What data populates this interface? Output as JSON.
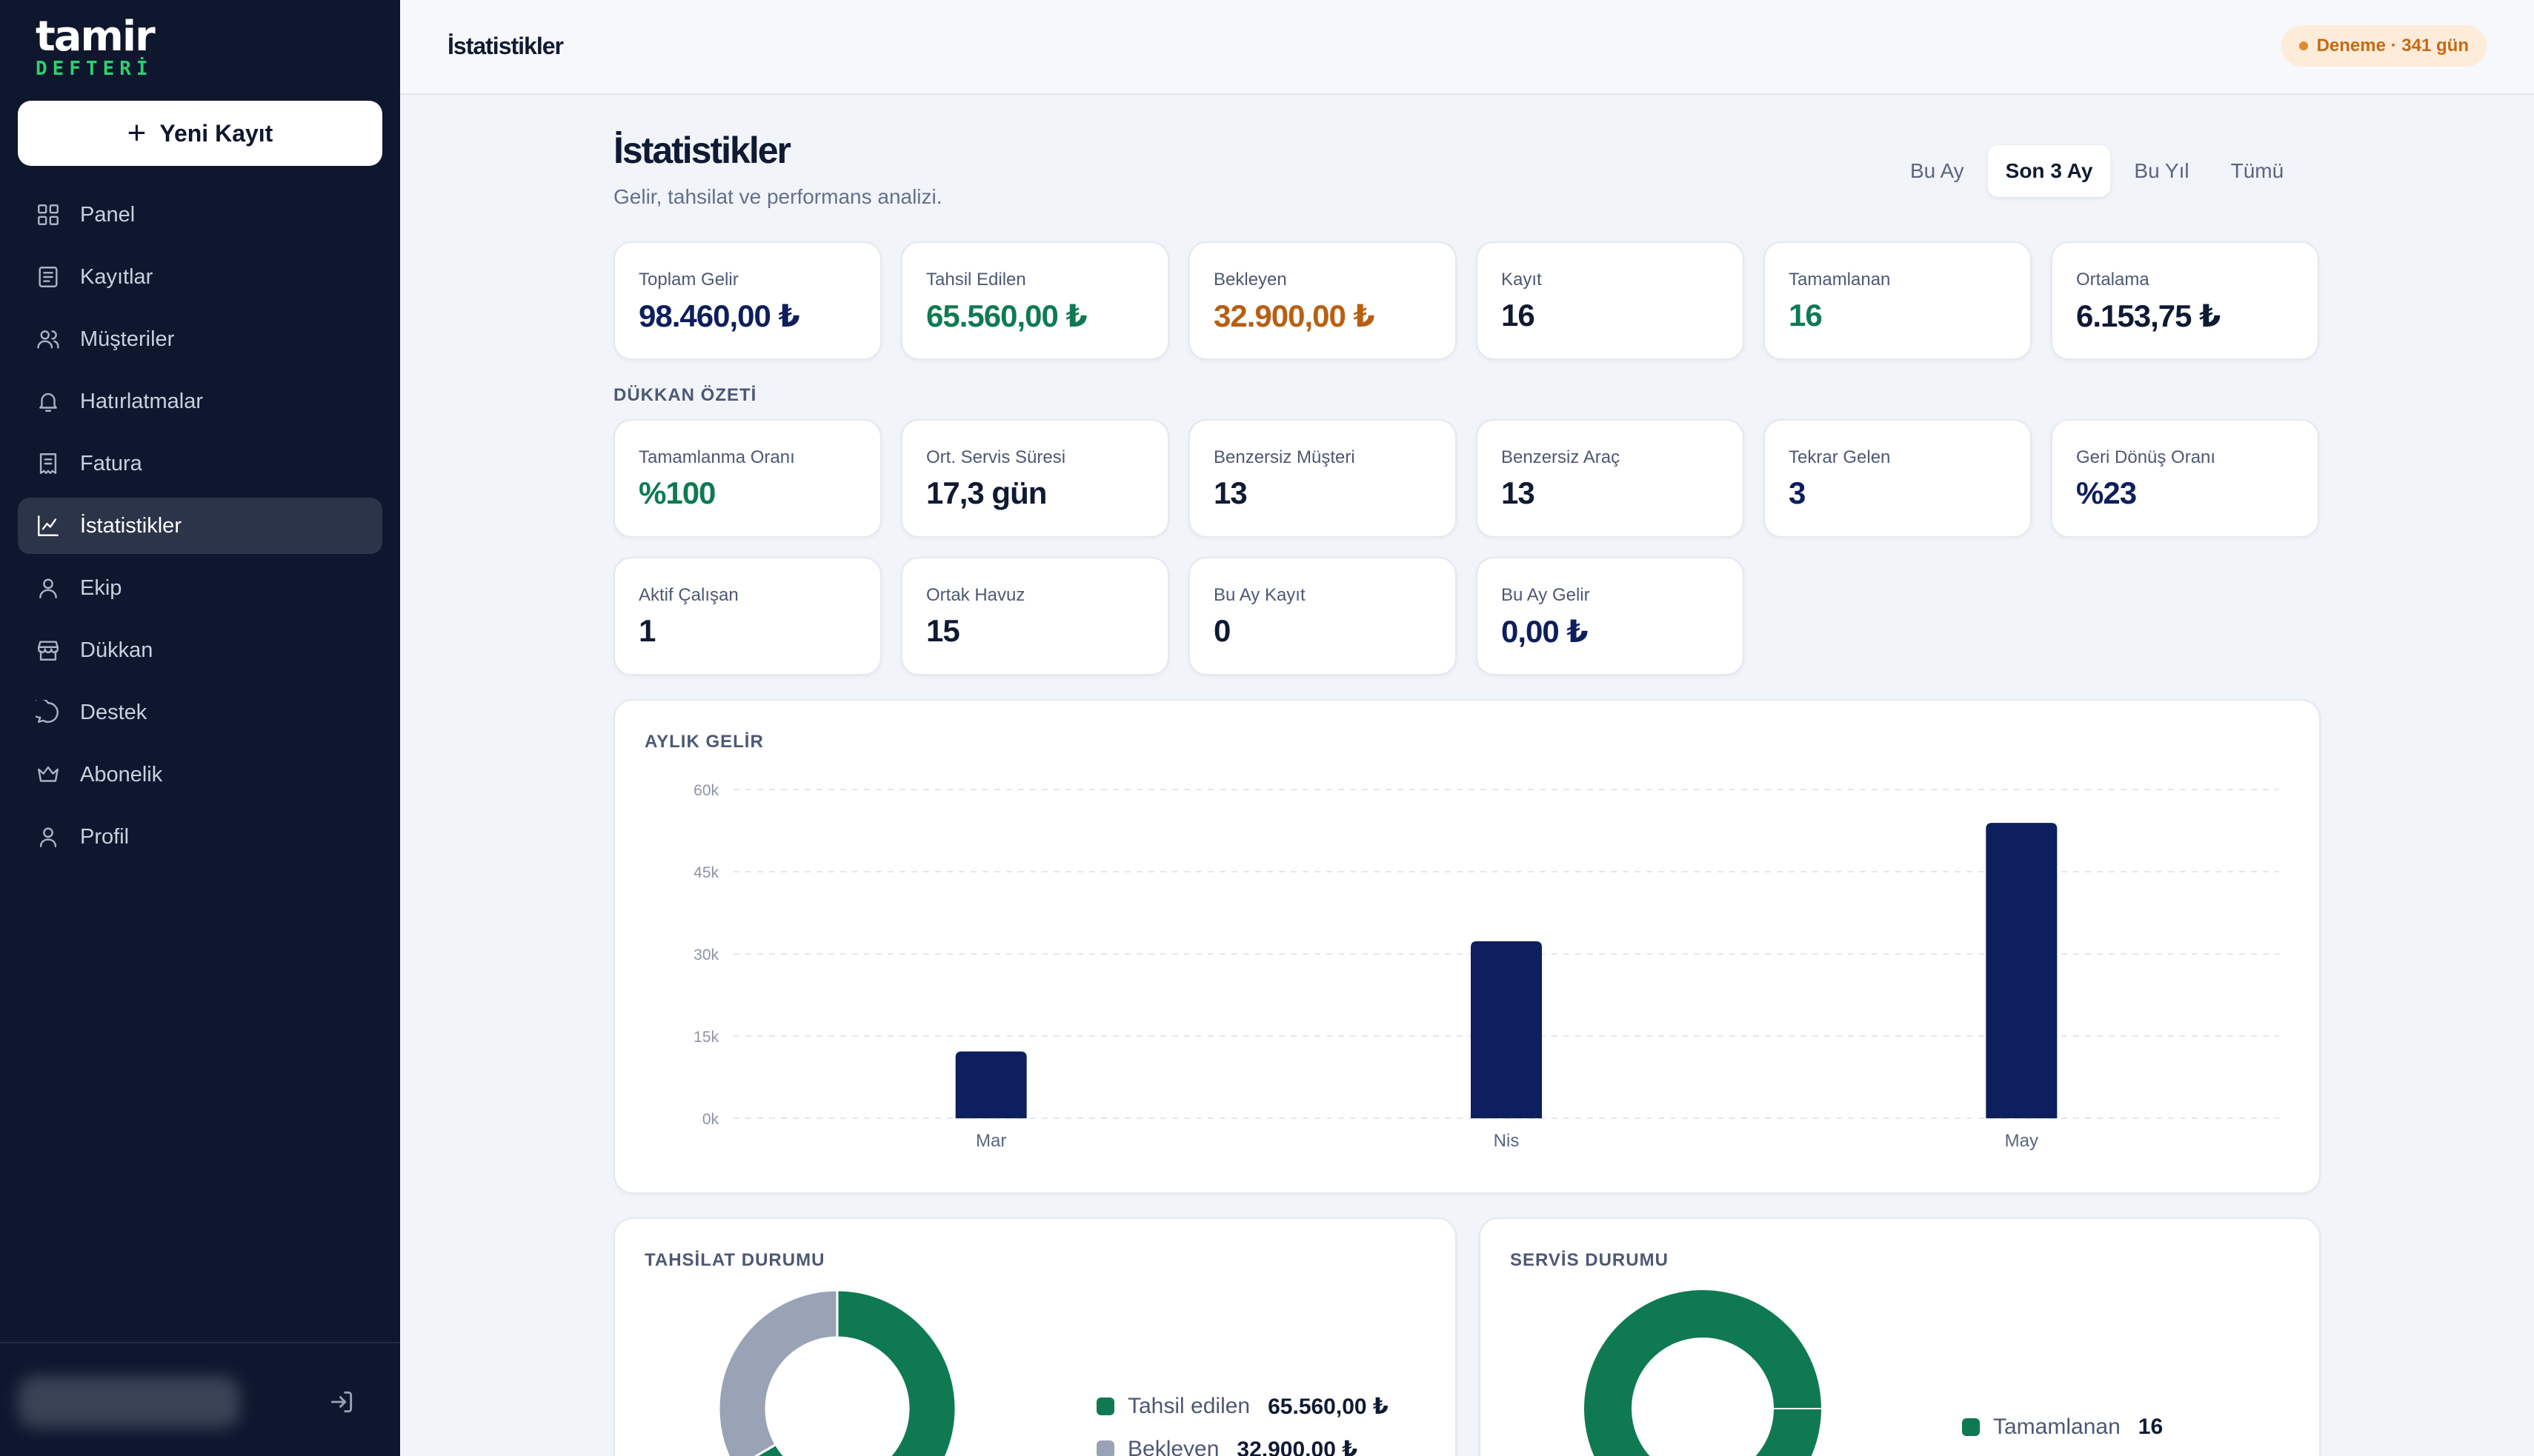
{
  "app": {
    "logo_top": "tamir",
    "logo_bottom": "DEFTERİ",
    "new_record_label": "Yeni Kayıt",
    "page_title": "İstatistikler",
    "trial_badge": "Deneme · 341 gün"
  },
  "sidebar": {
    "items": [
      {
        "label": "Panel",
        "icon": "grid-icon"
      },
      {
        "label": "Kayıtlar",
        "icon": "list-icon"
      },
      {
        "label": "Müşteriler",
        "icon": "users-icon"
      },
      {
        "label": "Hatırlatmalar",
        "icon": "bell-icon"
      },
      {
        "label": "Fatura",
        "icon": "invoice-icon"
      },
      {
        "label": "İstatistikler",
        "icon": "chart-icon",
        "active": true
      },
      {
        "label": "Ekip",
        "icon": "person-icon"
      },
      {
        "label": "Dükkan",
        "icon": "shop-icon"
      },
      {
        "label": "Destek",
        "icon": "chat-icon"
      },
      {
        "label": "Abonelik",
        "icon": "crown-icon"
      },
      {
        "label": "Profil",
        "icon": "profile-icon"
      }
    ]
  },
  "header": {
    "title": "İstatistikler",
    "subtitle": "Gelir, tahsilat ve performans analizi.",
    "range_tabs": [
      "Bu Ay",
      "Son 3 Ay",
      "Bu Yıl",
      "Tümü"
    ],
    "active_range": "Son 3 Ay"
  },
  "kpis": [
    {
      "label": "Toplam Gelir",
      "value": "98.460,00 ₺",
      "color": "#0d1f5c"
    },
    {
      "label": "Tahsil Edilen",
      "value": "65.560,00 ₺",
      "color": "#0f7a52"
    },
    {
      "label": "Bekleyen",
      "value": "32.900,00 ₺",
      "color": "#b85f12"
    },
    {
      "label": "Kayıt",
      "value": "16",
      "color": "#0f1a33"
    },
    {
      "label": "Tamamlanan",
      "value": "16",
      "color": "#0f7a52"
    },
    {
      "label": "Ortalama",
      "value": "6.153,75 ₺",
      "color": "#0f1a33"
    }
  ],
  "shop_summary": {
    "title": "DÜKKAN ÖZETİ",
    "cards": [
      {
        "label": "Tamamlanma Oranı",
        "value": "%100",
        "color": "#0f7a52"
      },
      {
        "label": "Ort. Servis Süresi",
        "value": "17,3 gün",
        "color": "#0f1a33"
      },
      {
        "label": "Benzersiz Müşteri",
        "value": "13",
        "color": "#0f1a33"
      },
      {
        "label": "Benzersiz Araç",
        "value": "13",
        "color": "#0f1a33"
      },
      {
        "label": "Tekrar Gelen",
        "value": "3",
        "color": "#0d1f5c"
      },
      {
        "label": "Geri Dönüş Oranı",
        "value": "%23",
        "color": "#0d1f5c"
      },
      {
        "label": "Aktif Çalışan",
        "value": "1",
        "color": "#0f1a33"
      },
      {
        "label": "Ortak Havuz",
        "value": "15",
        "color": "#0f1a33"
      },
      {
        "label": "Bu Ay Kayıt",
        "value": "0",
        "color": "#0f1a33"
      },
      {
        "label": "Bu Ay Gelir",
        "value": "0,00 ₺",
        "color": "#0d1f5c"
      }
    ]
  },
  "monthly_chart": {
    "title": "AYLIK GELİR"
  },
  "chart_data": [
    {
      "type": "bar",
      "title": "AYLIK GELİR",
      "categories": [
        "Mar",
        "Nis",
        "May"
      ],
      "values": [
        12200,
        32300,
        53900
      ],
      "ylim": [
        0,
        60000
      ],
      "yticks": [
        "0k",
        "15k",
        "30k",
        "45k",
        "60k"
      ],
      "grid": true,
      "color": "#0d1f5c"
    },
    {
      "type": "pie",
      "title": "TAHSİLAT DURUMU",
      "labels": [
        "Tahsil edilen",
        "Bekleyen"
      ],
      "values": [
        65560,
        32900
      ],
      "value_labels": [
        "65.560,00 ₺",
        "32.900,00 ₺"
      ],
      "colors": [
        "#0f7a52",
        "#9aa3b5"
      ]
    },
    {
      "type": "pie",
      "title": "SERVİS DURUMU",
      "labels": [
        "Tamamlanan"
      ],
      "values": [
        16
      ],
      "colors": [
        "#0f7a52"
      ]
    }
  ],
  "collection": {
    "title": "TAHSİLAT DURUMU",
    "legend": [
      {
        "label": "Tahsil edilen",
        "value": "65.560,00 ₺",
        "color": "#0f7a52"
      },
      {
        "label": "Bekleyen",
        "value": "32.900,00 ₺",
        "color": "#9aa3b5"
      }
    ]
  },
  "service": {
    "title": "SERVİS DURUMU",
    "legend": [
      {
        "label": "Tamamlanan",
        "value": "16",
        "color": "#0f7a52"
      }
    ]
  }
}
